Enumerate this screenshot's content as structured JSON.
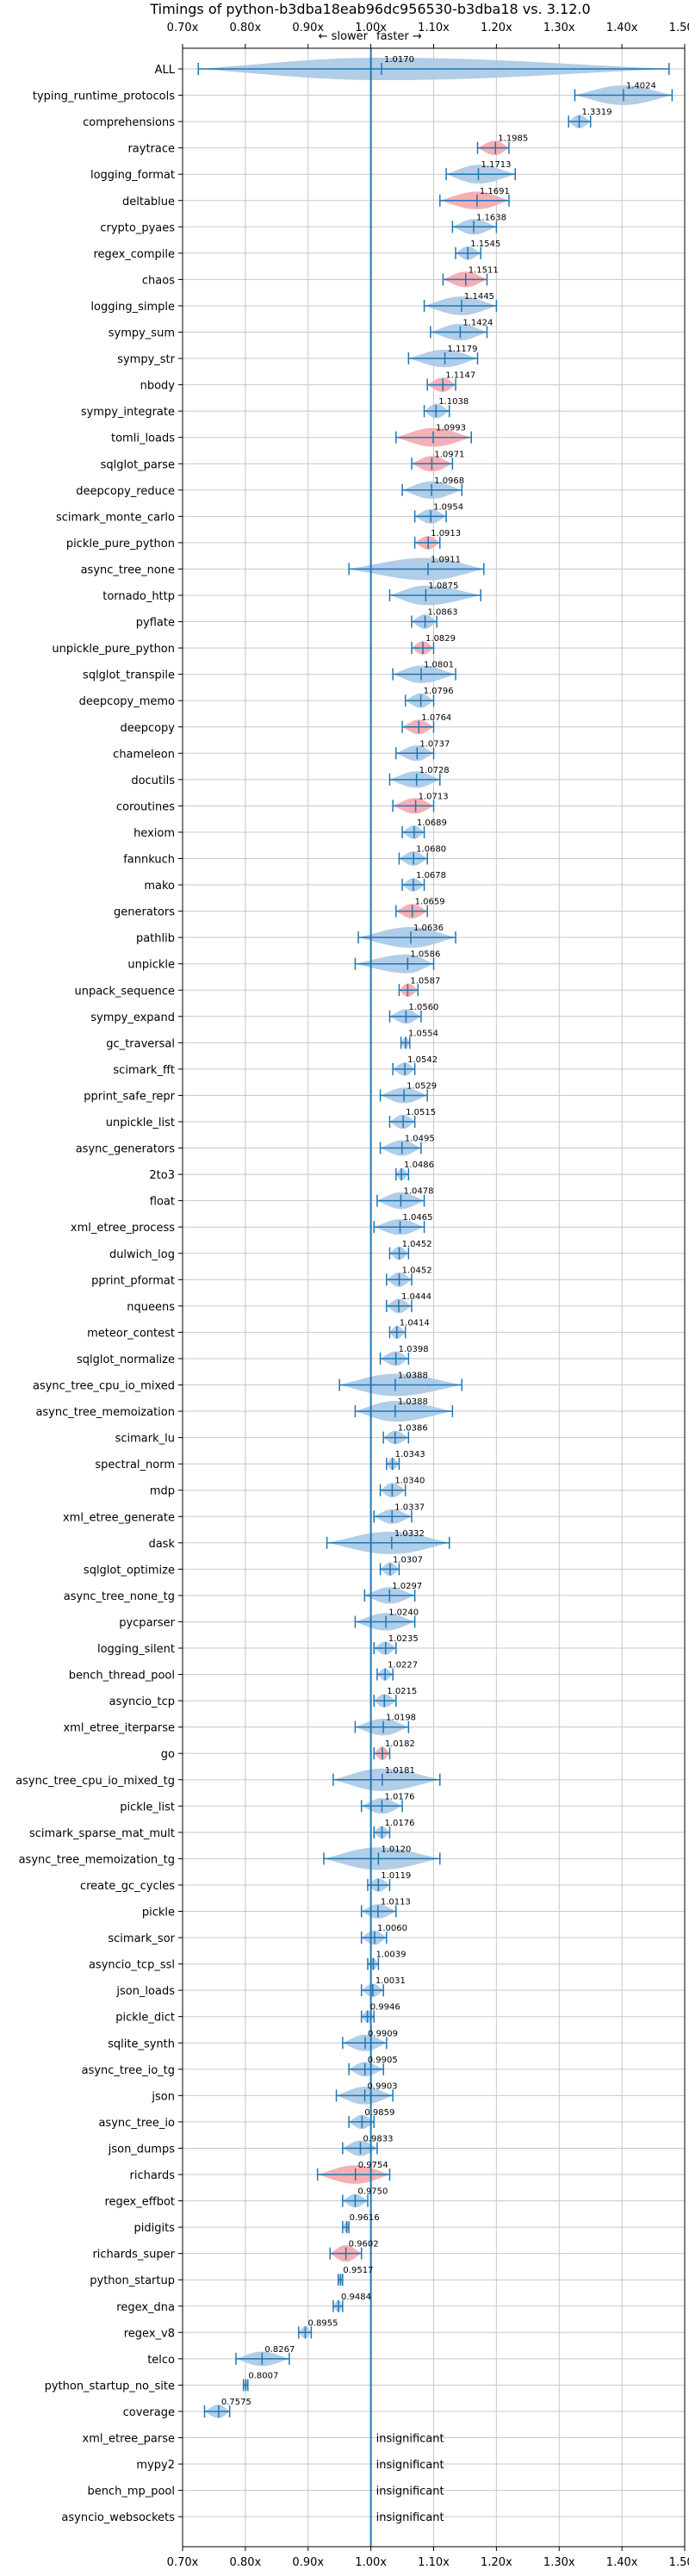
{
  "chart_data": {
    "type": "violin",
    "title": "Timings of python-b3dba18eab96dc956530-b3dba18 vs. 3.12.0",
    "direction_slower": "← slower",
    "direction_faster": "faster →",
    "xlim": [
      0.7,
      1.5
    ],
    "xticks": [
      0.7,
      0.8,
      0.9,
      1.0,
      1.1,
      1.2,
      1.3,
      1.4,
      1.5
    ],
    "xtick_labels": [
      "0.70x",
      "0.80x",
      "0.90x",
      "1.00x",
      "1.10x",
      "1.20x",
      "1.30x",
      "1.40x",
      "1.50x"
    ],
    "grid": true,
    "baseline": 1.0,
    "insignificant_label": "insignificant",
    "colors": {
      "faster": "#a9c8e6",
      "slower": "#f4a6ad",
      "errorbar": "#1f77b4",
      "baseline": "#1f77b4",
      "grid": "#c8c8c8"
    },
    "benchmarks": [
      {
        "name": "ALL",
        "value": 1.017,
        "value_label": "1.0170",
        "min": 0.725,
        "max": 1.475,
        "spread": 0.13,
        "color": "faster"
      },
      {
        "name": "typing_runtime_protocols",
        "value": 1.4024,
        "value_label": "1.4024",
        "min": 1.325,
        "max": 1.48,
        "spread": 0.09,
        "color": "faster"
      },
      {
        "name": "comprehensions",
        "value": 1.3319,
        "value_label": "1.3319",
        "min": 1.315,
        "max": 1.35,
        "spread": 0.03,
        "color": "faster"
      },
      {
        "name": "raytrace",
        "value": 1.1985,
        "value_label": "1.1985",
        "min": 1.17,
        "max": 1.22,
        "spread": 0.04,
        "color": "slower"
      },
      {
        "name": "logging_format",
        "value": 1.1713,
        "value_label": "1.1713",
        "min": 1.12,
        "max": 1.23,
        "spread": 0.08,
        "color": "faster"
      },
      {
        "name": "deltablue",
        "value": 1.1691,
        "value_label": "1.1691",
        "min": 1.11,
        "max": 1.22,
        "spread": 0.07,
        "color": "slower"
      },
      {
        "name": "crypto_pyaes",
        "value": 1.1638,
        "value_label": "1.1638",
        "min": 1.13,
        "max": 1.2,
        "spread": 0.05,
        "color": "faster"
      },
      {
        "name": "regex_compile",
        "value": 1.1545,
        "value_label": "1.1545",
        "min": 1.135,
        "max": 1.175,
        "spread": 0.03,
        "color": "faster"
      },
      {
        "name": "chaos",
        "value": 1.1511,
        "value_label": "1.1511",
        "min": 1.115,
        "max": 1.185,
        "spread": 0.05,
        "color": "slower"
      },
      {
        "name": "logging_simple",
        "value": 1.1445,
        "value_label": "1.1445",
        "min": 1.085,
        "max": 1.2,
        "spread": 0.08,
        "color": "faster"
      },
      {
        "name": "sympy_sum",
        "value": 1.1424,
        "value_label": "1.1424",
        "min": 1.095,
        "max": 1.185,
        "spread": 0.06,
        "color": "faster"
      },
      {
        "name": "sympy_str",
        "value": 1.1179,
        "value_label": "1.1179",
        "min": 1.06,
        "max": 1.17,
        "spread": 0.07,
        "color": "faster"
      },
      {
        "name": "nbody",
        "value": 1.1147,
        "value_label": "1.1147",
        "min": 1.09,
        "max": 1.135,
        "spread": 0.04,
        "color": "slower"
      },
      {
        "name": "sympy_integrate",
        "value": 1.1038,
        "value_label": "1.1038",
        "min": 1.085,
        "max": 1.125,
        "spread": 0.04,
        "color": "faster"
      },
      {
        "name": "tomli_loads",
        "value": 1.0993,
        "value_label": "1.0993",
        "min": 1.04,
        "max": 1.16,
        "spread": 0.08,
        "color": "slower"
      },
      {
        "name": "sqlglot_parse",
        "value": 1.0971,
        "value_label": "1.0971",
        "min": 1.065,
        "max": 1.13,
        "spread": 0.05,
        "color": "slower"
      },
      {
        "name": "deepcopy_reduce",
        "value": 1.0968,
        "value_label": "1.0968",
        "min": 1.05,
        "max": 1.145,
        "spread": 0.07,
        "color": "faster"
      },
      {
        "name": "scimark_monte_carlo",
        "value": 1.0954,
        "value_label": "1.0954",
        "min": 1.07,
        "max": 1.12,
        "spread": 0.04,
        "color": "faster"
      },
      {
        "name": "pickle_pure_python",
        "value": 1.0913,
        "value_label": "1.0913",
        "min": 1.07,
        "max": 1.11,
        "spread": 0.03,
        "color": "slower"
      },
      {
        "name": "async_tree_none",
        "value": 1.0911,
        "value_label": "1.0911",
        "min": 0.965,
        "max": 1.18,
        "spread": 0.14,
        "color": "faster"
      },
      {
        "name": "tornado_http",
        "value": 1.0875,
        "value_label": "1.0875",
        "min": 1.03,
        "max": 1.175,
        "spread": 0.09,
        "color": "faster"
      },
      {
        "name": "pyflate",
        "value": 1.0863,
        "value_label": "1.0863",
        "min": 1.065,
        "max": 1.105,
        "spread": 0.04,
        "color": "faster"
      },
      {
        "name": "unpickle_pure_python",
        "value": 1.0829,
        "value_label": "1.0829",
        "min": 1.065,
        "max": 1.1,
        "spread": 0.03,
        "color": "slower"
      },
      {
        "name": "sqlglot_transpile",
        "value": 1.0801,
        "value_label": "1.0801",
        "min": 1.035,
        "max": 1.135,
        "spread": 0.07,
        "color": "faster"
      },
      {
        "name": "deepcopy_memo",
        "value": 1.0796,
        "value_label": "1.0796",
        "min": 1.055,
        "max": 1.1,
        "spread": 0.04,
        "color": "faster"
      },
      {
        "name": "deepcopy",
        "value": 1.0764,
        "value_label": "1.0764",
        "min": 1.05,
        "max": 1.1,
        "spread": 0.04,
        "color": "slower"
      },
      {
        "name": "chameleon",
        "value": 1.0737,
        "value_label": "1.0737",
        "min": 1.04,
        "max": 1.1,
        "spread": 0.05,
        "color": "faster"
      },
      {
        "name": "docutils",
        "value": 1.0728,
        "value_label": "1.0728",
        "min": 1.03,
        "max": 1.11,
        "spread": 0.06,
        "color": "faster"
      },
      {
        "name": "coroutines",
        "value": 1.0713,
        "value_label": "1.0713",
        "min": 1.035,
        "max": 1.1,
        "spread": 0.05,
        "color": "slower"
      },
      {
        "name": "hexiom",
        "value": 1.0689,
        "value_label": "1.0689",
        "min": 1.05,
        "max": 1.085,
        "spread": 0.03,
        "color": "faster"
      },
      {
        "name": "fannkuch",
        "value": 1.068,
        "value_label": "1.0680",
        "min": 1.045,
        "max": 1.09,
        "spread": 0.04,
        "color": "faster"
      },
      {
        "name": "mako",
        "value": 1.0678,
        "value_label": "1.0678",
        "min": 1.05,
        "max": 1.085,
        "spread": 0.03,
        "color": "faster"
      },
      {
        "name": "generators",
        "value": 1.0659,
        "value_label": "1.0659",
        "min": 1.04,
        "max": 1.09,
        "spread": 0.04,
        "color": "slower"
      },
      {
        "name": "pathlib",
        "value": 1.0636,
        "value_label": "1.0636",
        "min": 0.98,
        "max": 1.135,
        "spread": 0.1,
        "color": "faster"
      },
      {
        "name": "unpickle",
        "value": 1.0586,
        "value_label": "1.0586",
        "min": 0.975,
        "max": 1.1,
        "spread": 0.08,
        "color": "faster"
      },
      {
        "name": "unpack_sequence",
        "value": 1.0587,
        "value_label": "1.0587",
        "min": 1.045,
        "max": 1.075,
        "spread": 0.03,
        "color": "slower"
      },
      {
        "name": "sympy_expand",
        "value": 1.056,
        "value_label": "1.0560",
        "min": 1.03,
        "max": 1.08,
        "spread": 0.04,
        "color": "faster"
      },
      {
        "name": "gc_traversal",
        "value": 1.0554,
        "value_label": "1.0554",
        "min": 1.048,
        "max": 1.062,
        "spread": 0.015,
        "color": "faster"
      },
      {
        "name": "scimark_fft",
        "value": 1.0542,
        "value_label": "1.0542",
        "min": 1.035,
        "max": 1.07,
        "spread": 0.03,
        "color": "faster"
      },
      {
        "name": "pprint_safe_repr",
        "value": 1.0529,
        "value_label": "1.0529",
        "min": 1.015,
        "max": 1.09,
        "spread": 0.05,
        "color": "faster"
      },
      {
        "name": "unpickle_list",
        "value": 1.0515,
        "value_label": "1.0515",
        "min": 1.03,
        "max": 1.07,
        "spread": 0.04,
        "color": "faster"
      },
      {
        "name": "async_generators",
        "value": 1.0495,
        "value_label": "1.0495",
        "min": 1.015,
        "max": 1.08,
        "spread": 0.05,
        "color": "faster"
      },
      {
        "name": "2to3",
        "value": 1.0486,
        "value_label": "1.0486",
        "min": 1.04,
        "max": 1.06,
        "spread": 0.02,
        "color": "faster"
      },
      {
        "name": "float",
        "value": 1.0478,
        "value_label": "1.0478",
        "min": 1.01,
        "max": 1.085,
        "spread": 0.06,
        "color": "faster"
      },
      {
        "name": "xml_etree_process",
        "value": 1.0465,
        "value_label": "1.0465",
        "min": 1.005,
        "max": 1.085,
        "spread": 0.05,
        "color": "faster"
      },
      {
        "name": "dulwich_log",
        "value": 1.0452,
        "value_label": "1.0452",
        "min": 1.03,
        "max": 1.06,
        "spread": 0.03,
        "color": "faster"
      },
      {
        "name": "pprint_pformat",
        "value": 1.0452,
        "value_label": "1.0452",
        "min": 1.025,
        "max": 1.065,
        "spread": 0.04,
        "color": "faster"
      },
      {
        "name": "nqueens",
        "value": 1.0444,
        "value_label": "1.0444",
        "min": 1.025,
        "max": 1.065,
        "spread": 0.04,
        "color": "faster"
      },
      {
        "name": "meteor_contest",
        "value": 1.0414,
        "value_label": "1.0414",
        "min": 1.03,
        "max": 1.055,
        "spread": 0.03,
        "color": "faster"
      },
      {
        "name": "sqlglot_normalize",
        "value": 1.0398,
        "value_label": "1.0398",
        "min": 1.015,
        "max": 1.06,
        "spread": 0.04,
        "color": "faster"
      },
      {
        "name": "async_tree_cpu_io_mixed",
        "value": 1.0388,
        "value_label": "1.0388",
        "min": 0.95,
        "max": 1.145,
        "spread": 0.12,
        "color": "faster"
      },
      {
        "name": "async_tree_memoization",
        "value": 1.0388,
        "value_label": "1.0388",
        "min": 0.975,
        "max": 1.13,
        "spread": 0.1,
        "color": "faster"
      },
      {
        "name": "scimark_lu",
        "value": 1.0386,
        "value_label": "1.0386",
        "min": 1.02,
        "max": 1.06,
        "spread": 0.03,
        "color": "faster"
      },
      {
        "name": "spectral_norm",
        "value": 1.0343,
        "value_label": "1.0343",
        "min": 1.025,
        "max": 1.045,
        "spread": 0.02,
        "color": "faster"
      },
      {
        "name": "mdp",
        "value": 1.034,
        "value_label": "1.0340",
        "min": 1.015,
        "max": 1.055,
        "spread": 0.04,
        "color": "faster"
      },
      {
        "name": "xml_etree_generate",
        "value": 1.0337,
        "value_label": "1.0337",
        "min": 1.005,
        "max": 1.065,
        "spread": 0.04,
        "color": "faster"
      },
      {
        "name": "dask",
        "value": 1.0332,
        "value_label": "1.0332",
        "min": 0.93,
        "max": 1.125,
        "spread": 0.12,
        "color": "faster"
      },
      {
        "name": "sqlglot_optimize",
        "value": 1.0307,
        "value_label": "1.0307",
        "min": 1.015,
        "max": 1.045,
        "spread": 0.03,
        "color": "faster"
      },
      {
        "name": "async_tree_none_tg",
        "value": 1.0297,
        "value_label": "1.0297",
        "min": 0.99,
        "max": 1.07,
        "spread": 0.06,
        "color": "faster"
      },
      {
        "name": "pycparser",
        "value": 1.024,
        "value_label": "1.0240",
        "min": 0.975,
        "max": 1.07,
        "spread": 0.07,
        "color": "faster"
      },
      {
        "name": "logging_silent",
        "value": 1.0235,
        "value_label": "1.0235",
        "min": 1.005,
        "max": 1.04,
        "spread": 0.03,
        "color": "faster"
      },
      {
        "name": "bench_thread_pool",
        "value": 1.0227,
        "value_label": "1.0227",
        "min": 1.01,
        "max": 1.035,
        "spread": 0.02,
        "color": "faster"
      },
      {
        "name": "asyncio_tcp",
        "value": 1.0215,
        "value_label": "1.0215",
        "min": 1.005,
        "max": 1.04,
        "spread": 0.03,
        "color": "faster"
      },
      {
        "name": "xml_etree_iterparse",
        "value": 1.0198,
        "value_label": "1.0198",
        "min": 0.975,
        "max": 1.06,
        "spread": 0.06,
        "color": "faster"
      },
      {
        "name": "go",
        "value": 1.0182,
        "value_label": "1.0182",
        "min": 1.005,
        "max": 1.03,
        "spread": 0.03,
        "color": "slower"
      },
      {
        "name": "async_tree_cpu_io_mixed_tg",
        "value": 1.0181,
        "value_label": "1.0181",
        "min": 0.94,
        "max": 1.11,
        "spread": 0.12,
        "color": "faster"
      },
      {
        "name": "pickle_list",
        "value": 1.0176,
        "value_label": "1.0176",
        "min": 0.985,
        "max": 1.05,
        "spread": 0.05,
        "color": "faster"
      },
      {
        "name": "scimark_sparse_mat_mult",
        "value": 1.0176,
        "value_label": "1.0176",
        "min": 1.005,
        "max": 1.03,
        "spread": 0.02,
        "color": "faster"
      },
      {
        "name": "async_tree_memoization_tg",
        "value": 1.012,
        "value_label": "1.0120",
        "min": 0.925,
        "max": 1.11,
        "spread": 0.12,
        "color": "faster"
      },
      {
        "name": "create_gc_cycles",
        "value": 1.0119,
        "value_label": "1.0119",
        "min": 0.995,
        "max": 1.03,
        "spread": 0.03,
        "color": "faster"
      },
      {
        "name": "pickle",
        "value": 1.0113,
        "value_label": "1.0113",
        "min": 0.985,
        "max": 1.04,
        "spread": 0.04,
        "color": "faster"
      },
      {
        "name": "scimark_sor",
        "value": 1.006,
        "value_label": "1.0060",
        "min": 0.985,
        "max": 1.025,
        "spread": 0.04,
        "color": "faster"
      },
      {
        "name": "asyncio_tcp_ssl",
        "value": 1.0039,
        "value_label": "1.0039",
        "min": 0.995,
        "max": 1.012,
        "spread": 0.015,
        "color": "faster"
      },
      {
        "name": "json_loads",
        "value": 1.0031,
        "value_label": "1.0031",
        "min": 0.985,
        "max": 1.02,
        "spread": 0.03,
        "color": "faster"
      },
      {
        "name": "pickle_dict",
        "value": 0.9946,
        "value_label": "0.9946",
        "min": 0.985,
        "max": 1.005,
        "spread": 0.02,
        "color": "faster"
      },
      {
        "name": "sqlite_synth",
        "value": 0.9909,
        "value_label": "0.9909",
        "min": 0.955,
        "max": 1.025,
        "spread": 0.06,
        "color": "faster"
      },
      {
        "name": "async_tree_io_tg",
        "value": 0.9905,
        "value_label": "0.9905",
        "min": 0.965,
        "max": 1.02,
        "spread": 0.04,
        "color": "faster"
      },
      {
        "name": "json",
        "value": 0.9903,
        "value_label": "0.9903",
        "min": 0.945,
        "max": 1.035,
        "spread": 0.07,
        "color": "faster"
      },
      {
        "name": "async_tree_io",
        "value": 0.9859,
        "value_label": "0.9859",
        "min": 0.965,
        "max": 1.005,
        "spread": 0.04,
        "color": "faster"
      },
      {
        "name": "json_dumps",
        "value": 0.9833,
        "value_label": "0.9833",
        "min": 0.955,
        "max": 1.01,
        "spread": 0.05,
        "color": "faster"
      },
      {
        "name": "richards",
        "value": 0.9754,
        "value_label": "0.9754",
        "min": 0.915,
        "max": 1.03,
        "spread": 0.08,
        "color": "slower"
      },
      {
        "name": "regex_effbot",
        "value": 0.975,
        "value_label": "0.9750",
        "min": 0.955,
        "max": 0.995,
        "spread": 0.03,
        "color": "faster"
      },
      {
        "name": "pidigits",
        "value": 0.9616,
        "value_label": "0.9616",
        "min": 0.955,
        "max": 0.965,
        "spread": 0.01,
        "color": "faster"
      },
      {
        "name": "richards_super",
        "value": 0.9602,
        "value_label": "0.9602",
        "min": 0.935,
        "max": 0.985,
        "spread": 0.06,
        "color": "slower"
      },
      {
        "name": "python_startup",
        "value": 0.9517,
        "value_label": "0.9517",
        "min": 0.948,
        "max": 0.955,
        "spread": 0.01,
        "color": "faster"
      },
      {
        "name": "regex_dna",
        "value": 0.9484,
        "value_label": "0.9484",
        "min": 0.94,
        "max": 0.955,
        "spread": 0.015,
        "color": "faster"
      },
      {
        "name": "regex_v8",
        "value": 0.8955,
        "value_label": "0.8955",
        "min": 0.885,
        "max": 0.905,
        "spread": 0.02,
        "color": "faster"
      },
      {
        "name": "telco",
        "value": 0.8267,
        "value_label": "0.8267",
        "min": 0.785,
        "max": 0.87,
        "spread": 0.04,
        "color": "faster"
      },
      {
        "name": "python_startup_no_site",
        "value": 0.8007,
        "value_label": "0.8007",
        "min": 0.797,
        "max": 0.804,
        "spread": 0.01,
        "color": "faster"
      },
      {
        "name": "coverage",
        "value": 0.7575,
        "value_label": "0.7575",
        "min": 0.735,
        "max": 0.775,
        "spread": 0.03,
        "color": "faster"
      },
      {
        "name": "xml_etree_parse",
        "insignificant": true
      },
      {
        "name": "mypy2",
        "insignificant": true
      },
      {
        "name": "bench_mp_pool",
        "insignificant": true
      },
      {
        "name": "asyncio_websockets",
        "insignificant": true
      }
    ]
  }
}
